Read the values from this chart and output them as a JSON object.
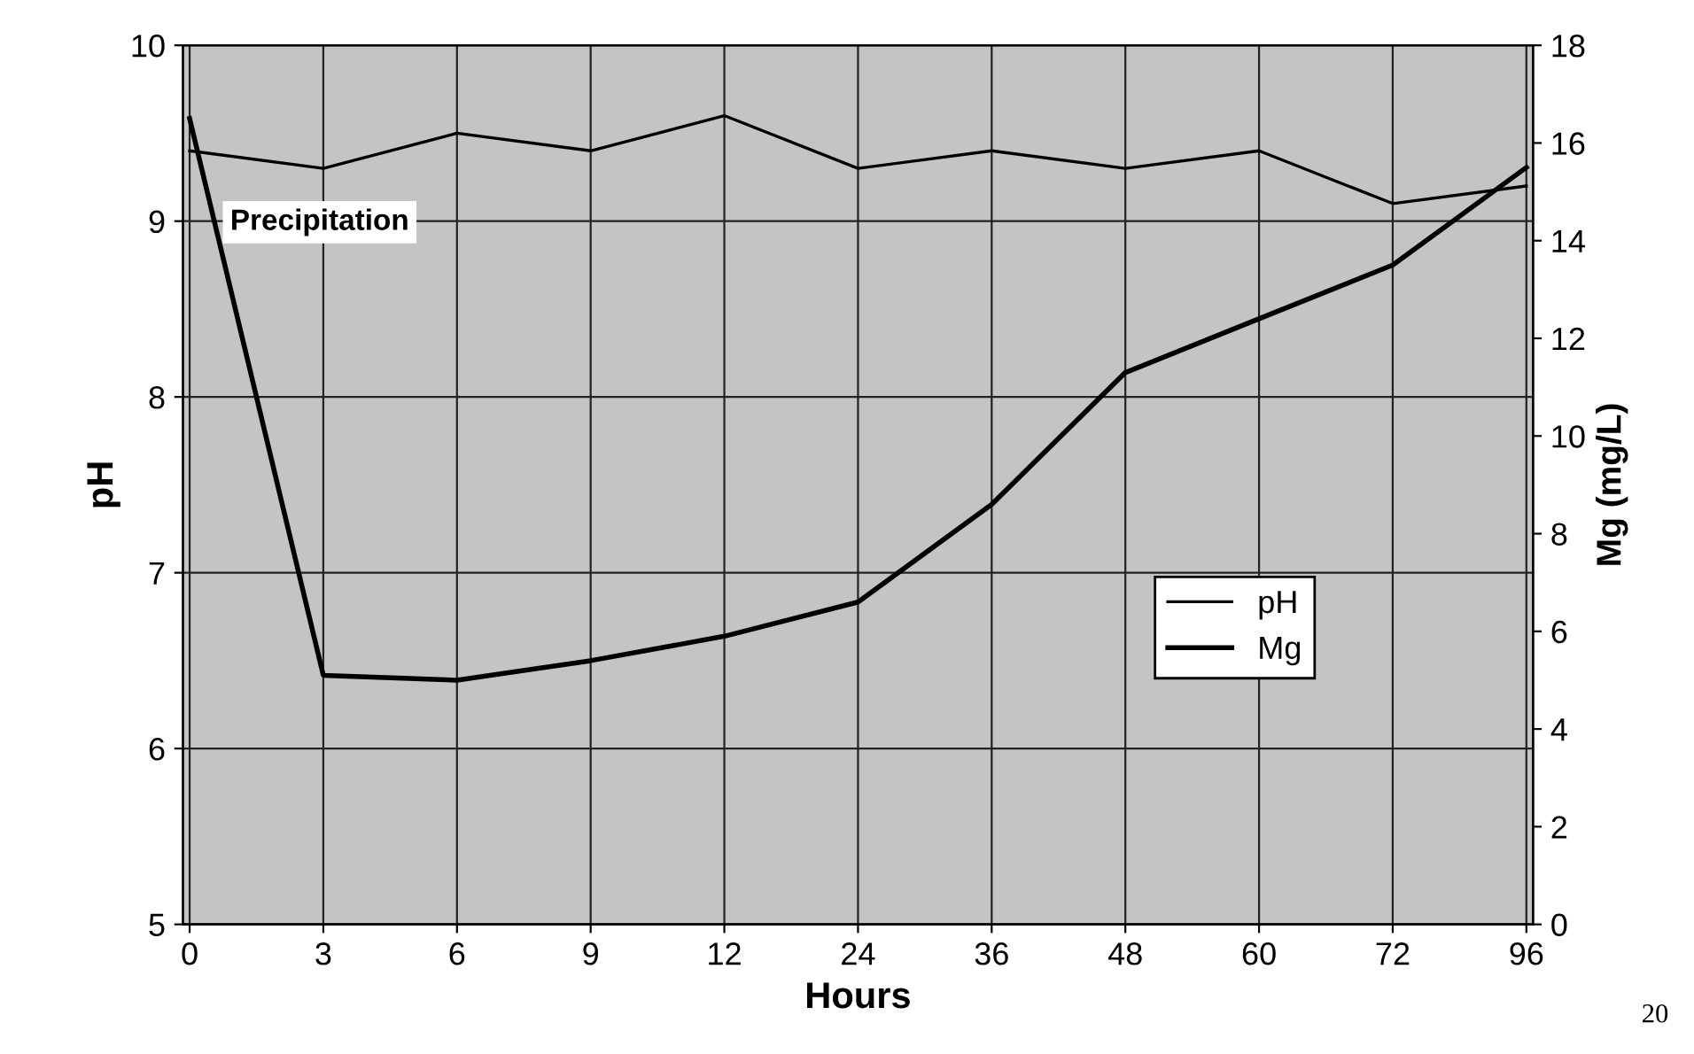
{
  "chart_data": {
    "type": "line",
    "xlabel": "Hours",
    "ylabel": "pH",
    "y2label": "Mg (mg/L)",
    "categories": [
      "0",
      "3",
      "6",
      "9",
      "12",
      "24",
      "36",
      "48",
      "60",
      "72",
      "96"
    ],
    "series": [
      {
        "name": "pH",
        "color": "#000000",
        "values": [
          9.4,
          9.3,
          9.5,
          9.4,
          9.6,
          9.3,
          9.4,
          9.3,
          9.4,
          9.1,
          9.2
        ]
      },
      {
        "name": "Mg",
        "color": "#000000",
        "axis": "y2",
        "values": [
          16.5,
          5.1,
          5.0,
          5.4,
          5.9,
          6.6,
          8.6,
          11.3,
          12.4,
          13.5,
          15.5
        ]
      }
    ],
    "ylim": [
      5,
      10
    ],
    "yticks": [
      5,
      6,
      7,
      8,
      9,
      10
    ],
    "y2lim": [
      0,
      18
    ],
    "y2ticks": [
      0,
      2,
      4,
      6,
      8,
      10,
      12,
      14,
      16,
      18
    ],
    "grid": true,
    "legend": "bottom right",
    "marker": "none",
    "line_style": "solid",
    "annotations": [
      "Precipitation",
      "20"
    ]
  }
}
